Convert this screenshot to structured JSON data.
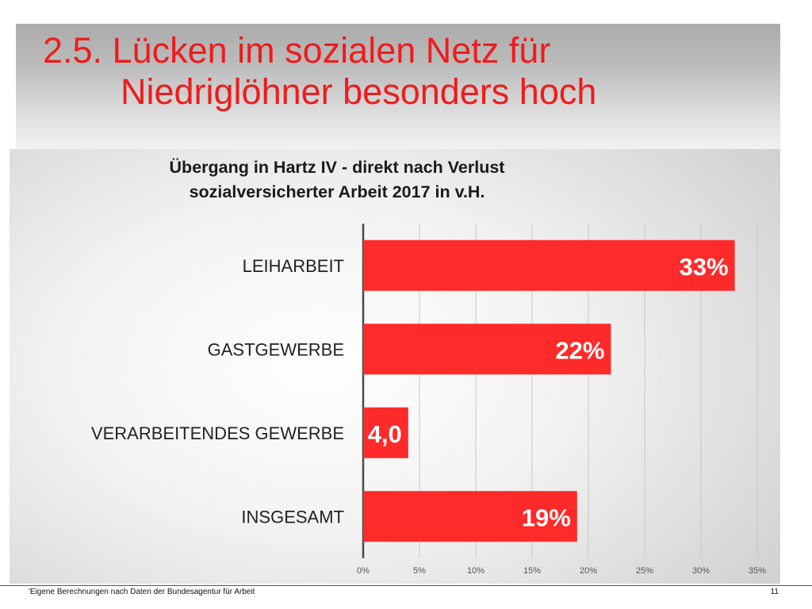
{
  "slide": {
    "title_line1": "2.5. Lücken im sozialen Netz für",
    "title_line2": "Niedriglöhner besonders hoch",
    "footnote": "'Eigene Berechnungen nach Daten der Bundesagentur für Arbeit",
    "page_number": "11"
  },
  "chart_data": {
    "type": "bar",
    "orientation": "horizontal",
    "title_line1": "Übergang in Hartz IV - direkt nach Verlust",
    "title_line2": "sozialversicherter Arbeit 2017 in v.H.",
    "categories": [
      "LEIHARBEIT",
      "GASTGEWERBE",
      "VERARBEITENDES GEWERBE",
      "INSGESAMT"
    ],
    "values": [
      33,
      22,
      4,
      19
    ],
    "data_labels": [
      "33%",
      "22%",
      "4,0",
      "19%"
    ],
    "x_ticks": [
      "0%",
      "5%",
      "10%",
      "15%",
      "20%",
      "25%",
      "30%",
      "35%"
    ],
    "xlim": [
      0,
      35
    ],
    "grid": "vertical",
    "bar_color": "#ff2a2a",
    "label_color": "#ffffff",
    "text_color": "#222222"
  }
}
